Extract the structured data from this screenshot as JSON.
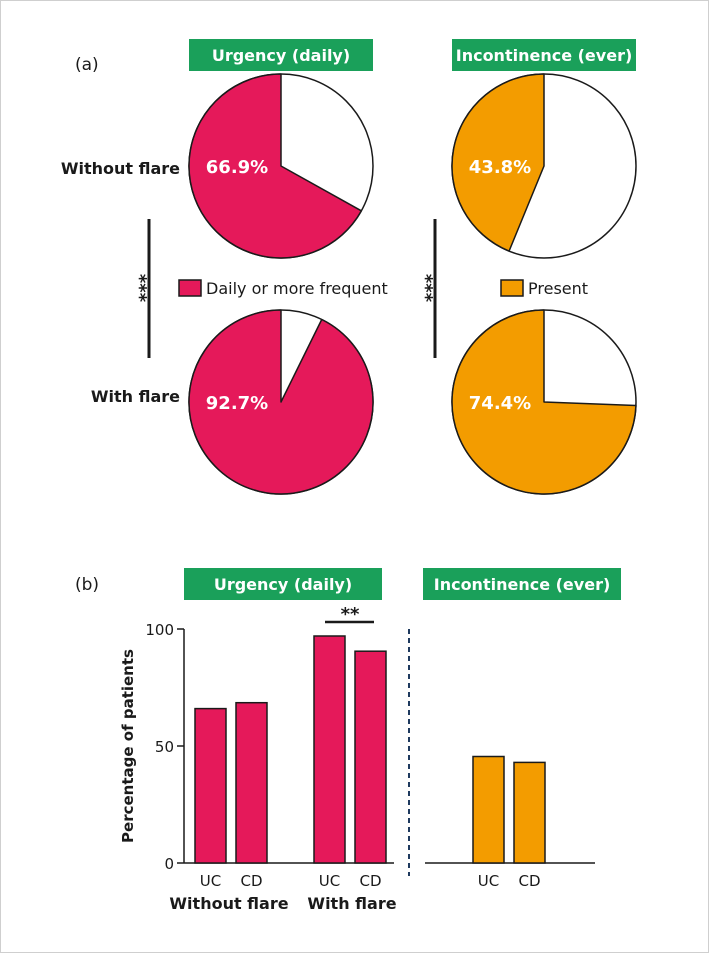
{
  "colors": {
    "urgency": "#e5195a",
    "incontinence": "#f39c00",
    "header_bg": "#1aa05a",
    "header_text": "#ffffff",
    "ink": "#1a1a1a",
    "divider": "#1f3a5f"
  },
  "panel_a": {
    "label": "(a)",
    "headers": [
      "Urgency (daily)",
      "Incontinence (ever)"
    ],
    "rows": [
      "Without flare",
      "With flare"
    ],
    "significance": "***",
    "legend": [
      "Daily or more frequent",
      "Present"
    ]
  },
  "panel_b": {
    "label": "(b)",
    "headers": [
      "Urgency (daily)",
      "Incontinence (ever)"
    ],
    "group_labels": [
      "Without flare",
      "With flare"
    ],
    "bar_significance": "**"
  },
  "chart_data": [
    {
      "type": "pie",
      "title": "Urgency (daily)",
      "series": [
        {
          "name": "Without flare",
          "values": [
            66.9,
            33.1
          ],
          "labels": [
            "66.9%",
            ""
          ]
        },
        {
          "name": "With flare",
          "values": [
            92.7,
            7.3
          ],
          "labels": [
            "92.7%",
            ""
          ]
        }
      ],
      "legend": "Daily or more frequent"
    },
    {
      "type": "pie",
      "title": "Incontinence (ever)",
      "series": [
        {
          "name": "Without flare",
          "values": [
            43.8,
            56.2
          ],
          "labels": [
            "43.8%",
            ""
          ]
        },
        {
          "name": "With flare",
          "values": [
            74.4,
            25.6
          ],
          "labels": [
            "74.4%",
            ""
          ]
        }
      ],
      "legend": "Present"
    },
    {
      "type": "bar",
      "title": "Urgency (daily)",
      "categories": [
        "UC",
        "CD",
        "UC",
        "CD"
      ],
      "groups": [
        "Without flare",
        "With flare"
      ],
      "values": [
        66,
        68.5,
        97,
        90.5
      ],
      "ylabel": "Percentage of patients",
      "yticks": [
        "0",
        "50",
        "100"
      ],
      "ylim": [
        0,
        100
      ]
    },
    {
      "type": "bar",
      "title": "Incontinence (ever)",
      "categories": [
        "UC",
        "CD"
      ],
      "values": [
        45.5,
        43
      ],
      "ylim": [
        0,
        100
      ]
    }
  ]
}
